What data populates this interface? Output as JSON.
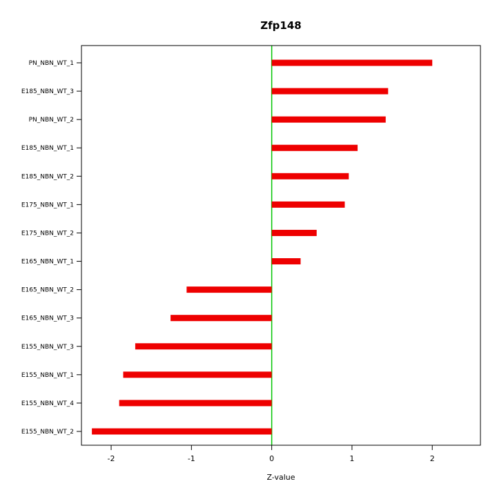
{
  "chart_data": {
    "type": "bar",
    "orientation": "horizontal",
    "title": "Zfp148",
    "xlabel": "Z-value",
    "ylabel": "",
    "xlim": [
      -2.37,
      2.6
    ],
    "xticks": [
      -2,
      -1,
      0,
      1,
      2
    ],
    "grid": false,
    "legend": false,
    "categories": [
      "PN_NBN_WT_1",
      "E185_NBN_WT_3",
      "PN_NBN_WT_2",
      "E185_NBN_WT_1",
      "E185_NBN_WT_2",
      "E175_NBN_WT_1",
      "E175_NBN_WT_2",
      "E165_NBN_WT_1",
      "E165_NBN_WT_2",
      "E165_NBN_WT_3",
      "E155_NBN_WT_3",
      "E155_NBN_WT_1",
      "E155_NBN_WT_4",
      "E155_NBN_WT_2"
    ],
    "values": [
      2.0,
      1.45,
      1.42,
      1.07,
      0.96,
      0.91,
      0.56,
      0.36,
      -1.06,
      -1.26,
      -1.7,
      -1.85,
      -1.9,
      -2.24
    ],
    "bar_color": "#ee0000",
    "zero_line_color": "#00c400",
    "axis_color": "#000000",
    "background_color": "#ffffff"
  }
}
